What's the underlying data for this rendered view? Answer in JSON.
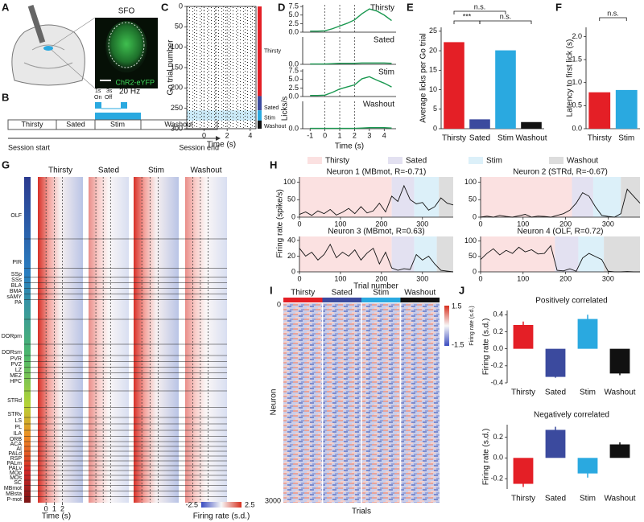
{
  "panels": {
    "A": {
      "label": "A",
      "region": "SFO",
      "reporter": "ChR2-eYFP"
    },
    "B": {
      "label": "B",
      "pulse": [
        "1s",
        "3s"
      ],
      "pulse_state": [
        "On",
        "Off"
      ],
      "frequency": "20 Hz",
      "phases": [
        "Thirsty",
        "Sated",
        "Stim",
        "Washout"
      ],
      "start": "Session start",
      "end": "Session end"
    },
    "G": {
      "label": "G",
      "columns": [
        "Thirsty",
        "Sated",
        "Stim",
        "Washout"
      ],
      "regions": [
        "OLF",
        "PIR",
        "SSp",
        "SSs",
        "BLA",
        "BMA",
        "sAMY",
        "PA",
        "DORpm",
        "DORsm",
        "PVR",
        "PVZ",
        "LZ",
        "MEZ",
        "HPC",
        "STRd",
        "STRv",
        "LS",
        "PL",
        "ILA",
        "ORB",
        "ACA",
        "AI",
        "PALd",
        "RSP",
        "PALm",
        "PALv",
        "MOp",
        "MOs",
        "SC",
        "MBmot",
        "MBsta",
        "P-mot"
      ],
      "xticks": [
        0,
        1,
        2
      ],
      "xlabel": "Time (s)",
      "colorbar_ticks": [
        -2.5,
        2.5
      ],
      "colorbar_label": "Firing rate (s.d.)"
    },
    "H": {
      "label": "H",
      "legend": [
        {
          "name": "Thirsty",
          "color": "#fbe1e1"
        },
        {
          "name": "Sated",
          "color": "#e3e1f1"
        },
        {
          "name": "Stim",
          "color": "#dcf0f9"
        },
        {
          "name": "Washout",
          "color": "#dddddd"
        }
      ],
      "ylabel": "Firing rate (spike/s)",
      "xlabel": "Trial number"
    },
    "I": {
      "label": "I",
      "columns": [
        {
          "name": "Thirsty",
          "color": "#e41f26"
        },
        {
          "name": "Sated",
          "color": "#3b4a9e"
        },
        {
          "name": "Stim",
          "color": "#2aa9e0"
        },
        {
          "name": "Washout",
          "color": "#111111"
        }
      ],
      "ylabel": "Neuron",
      "yticks": [
        0,
        3000
      ],
      "xlabel": "Trials",
      "colorbar_ticks": [
        1.5,
        -1.5
      ],
      "colorbar_label": "Firing rate (s.d.)"
    },
    "J": {
      "label": "J"
    }
  },
  "chart_data": [
    {
      "type": "raster",
      "label": "C",
      "ylabel": "Go trial number",
      "xlabel": "Time (s)",
      "xlim": [
        -1.5,
        4.5
      ],
      "xticks": [
        0,
        2,
        4
      ],
      "ylim": [
        0,
        300
      ],
      "yticks": [
        0,
        50,
        100,
        150,
        200,
        250,
        300
      ],
      "markers": [
        0,
        1,
        2
      ],
      "series": [
        {
          "name": "Thirsty",
          "color": "#e41f26",
          "range": [
            0,
            220
          ]
        },
        {
          "name": "Sated",
          "color": "#3b4a9e",
          "range": [
            220,
            255
          ]
        },
        {
          "name": "Stim",
          "color": "#2aa9e0",
          "range": [
            255,
            280
          ]
        },
        {
          "name": "Washout",
          "color": "#111111",
          "range": [
            280,
            300
          ]
        }
      ]
    },
    {
      "type": "multiline",
      "label": "D",
      "ylabel": "Licks/s",
      "xlabel": "Time (s)",
      "color": "#1a9850",
      "xlim": [
        -1.5,
        4.8
      ],
      "xticks": [
        -1,
        0,
        1,
        2,
        3,
        4
      ],
      "markers": [
        0,
        1,
        2
      ],
      "x": [
        -1,
        -0.5,
        0,
        0.5,
        1,
        1.5,
        2,
        2.5,
        3,
        3.5,
        4,
        4.5
      ],
      "subplots": [
        {
          "title": "Thirsty",
          "ylim": [
            0,
            8
          ],
          "yticks": [
            {
              "value": 0,
              "label": "0.0"
            },
            2.5,
            {
              "value": 5,
              "label": "5.0"
            },
            7.5
          ],
          "values": [
            0.3,
            0.3,
            0.4,
            1.0,
            1.8,
            2.6,
            3.6,
            5.4,
            6.8,
            6.2,
            5.0,
            3.4
          ]
        },
        {
          "title": "Sated",
          "ylim": [
            0,
            8
          ],
          "yticks": [
            {
              "value": 0,
              "label": "0.0"
            }
          ],
          "values": [
            0.1,
            0.1,
            0.1,
            0.2,
            0.3,
            0.3,
            0.3,
            0.4,
            0.4,
            0.4,
            0.4,
            0.3
          ]
        },
        {
          "title": "Stim",
          "ylim": [
            0,
            8
          ],
          "yticks": [
            {
              "value": 0,
              "label": "0.0"
            },
            2.5,
            {
              "value": 5,
              "label": "5.0"
            },
            7.5
          ],
          "values": [
            0.3,
            0.3,
            0.4,
            1.2,
            2.2,
            2.8,
            3.4,
            5.2,
            5.8,
            4.8,
            3.9,
            2.8
          ]
        },
        {
          "title": "Washout",
          "ylim": [
            0,
            8
          ],
          "yticks": [
            {
              "value": 0,
              "label": "0.0"
            }
          ],
          "values": [
            0.1,
            0.1,
            0.1,
            0.1,
            0.1,
            0.1,
            0.1,
            0.2,
            0.3,
            0.3,
            0.3,
            0.2
          ]
        }
      ]
    },
    {
      "type": "bar",
      "label": "E",
      "ylabel": "Average licks per Go trial",
      "categories": [
        "Thirsty",
        "Sated",
        "Stim",
        "Washout"
      ],
      "values": [
        22.2,
        2.4,
        20.1,
        1.7
      ],
      "colors": [
        "#e41f26",
        "#3b4a9e",
        "#2aa9e0",
        "#111111"
      ],
      "ylim": [
        0,
        26
      ],
      "yticks": [
        0,
        5,
        10,
        15,
        20,
        25
      ],
      "annotations": [
        "***",
        "n.s.",
        "n.s."
      ]
    },
    {
      "type": "bar",
      "label": "F",
      "ylabel": "Latency to first lick (s)",
      "categories": [
        "Thirsty",
        "Stim"
      ],
      "values": [
        0.79,
        0.84
      ],
      "colors": [
        "#e41f26",
        "#2aa9e0"
      ],
      "ylim": [
        0,
        2.2
      ],
      "yticks": [
        {
          "value": 0,
          "label": "0.0"
        },
        0.5,
        {
          "value": 1,
          "label": "1.0"
        },
        1.5,
        {
          "value": 2,
          "label": "2.0"
        }
      ],
      "annotations": [
        "n.s."
      ]
    },
    {
      "type": "line",
      "title": "Neuron 1 (MBmot, R=-0.71)",
      "xlim": [
        0,
        375
      ],
      "xticks": [
        0,
        100,
        200,
        300
      ],
      "ylim": [
        0,
        115
      ],
      "yticks": [
        0,
        50,
        100
      ],
      "phases": [
        [
          0,
          225
        ],
        [
          225,
          280
        ],
        [
          280,
          340
        ],
        [
          340,
          375
        ]
      ],
      "x": [
        0,
        15,
        30,
        45,
        60,
        75,
        90,
        105,
        120,
        135,
        150,
        165,
        180,
        195,
        210,
        225,
        240,
        255,
        270,
        285,
        300,
        315,
        330,
        345,
        360,
        375
      ],
      "values": [
        8,
        15,
        5,
        18,
        10,
        22,
        6,
        14,
        25,
        10,
        30,
        12,
        18,
        40,
        15,
        60,
        45,
        90,
        50,
        38,
        42,
        20,
        30,
        55,
        40,
        35
      ]
    },
    {
      "type": "line",
      "title": "Neuron 2 (STRd, R=-0.67)",
      "xlim": [
        0,
        375
      ],
      "xticks": [
        0,
        100,
        200,
        300
      ],
      "ylim": [
        0,
        115
      ],
      "yticks": [
        0,
        50,
        100
      ],
      "phases": [
        [
          0,
          215
        ],
        [
          215,
          265
        ],
        [
          265,
          330
        ],
        [
          330,
          375
        ]
      ],
      "x": [
        0,
        15,
        30,
        45,
        60,
        75,
        90,
        105,
        120,
        135,
        150,
        165,
        180,
        195,
        210,
        225,
        240,
        255,
        270,
        285,
        300,
        315,
        330,
        345,
        360,
        375
      ],
      "values": [
        0,
        3,
        0,
        5,
        2,
        0,
        4,
        8,
        0,
        3,
        2,
        0,
        5,
        10,
        20,
        40,
        70,
        60,
        30,
        5,
        2,
        0,
        10,
        80,
        60,
        40
      ]
    },
    {
      "type": "line",
      "title": "Neuron 3 (MBmot, R=0.63)",
      "xlim": [
        0,
        375
      ],
      "xticks": [
        0,
        100,
        200,
        300
      ],
      "ylim": [
        0,
        45
      ],
      "yticks": [
        0,
        20,
        40
      ],
      "phases": [
        [
          0,
          225
        ],
        [
          225,
          280
        ],
        [
          280,
          335
        ],
        [
          335,
          375
        ]
      ],
      "x": [
        0,
        15,
        30,
        45,
        60,
        75,
        90,
        105,
        120,
        135,
        150,
        165,
        180,
        195,
        210,
        225,
        240,
        255,
        270,
        285,
        300,
        315,
        330,
        345,
        360,
        375
      ],
      "values": [
        30,
        20,
        25,
        15,
        22,
        35,
        18,
        25,
        20,
        28,
        15,
        24,
        30,
        10,
        25,
        5,
        2,
        4,
        3,
        22,
        15,
        20,
        10,
        2,
        1,
        0
      ]
    },
    {
      "type": "line",
      "title": "Neuron 4 (OLF, R=0.72)",
      "xlim": [
        0,
        375
      ],
      "xticks": [
        0,
        100,
        200,
        300
      ],
      "ylim": [
        0,
        115
      ],
      "yticks": [
        0,
        50,
        100
      ],
      "phases": [
        [
          0,
          175
        ],
        [
          175,
          230
        ],
        [
          230,
          290
        ],
        [
          290,
          375
        ]
      ],
      "x": [
        0,
        15,
        30,
        45,
        60,
        75,
        90,
        105,
        120,
        135,
        150,
        165,
        180,
        195,
        210,
        225,
        240,
        255,
        270,
        285,
        300,
        315,
        330,
        345,
        360,
        375
      ],
      "values": [
        40,
        60,
        75,
        55,
        70,
        60,
        80,
        65,
        72,
        58,
        60,
        85,
        5,
        3,
        10,
        2,
        45,
        60,
        50,
        40,
        2,
        0,
        0,
        1,
        0,
        0
      ]
    },
    {
      "type": "bar",
      "title": "Positively correlated",
      "ylabel": "Firing rate (s.d.)",
      "categories": [
        "Thirsty",
        "Sated",
        "Stim",
        "Washout"
      ],
      "values": [
        0.28,
        -0.33,
        0.35,
        -0.29
      ],
      "errors": [
        0.04,
        0.01,
        0.05,
        0.02
      ],
      "colors": [
        "#e41f26",
        "#3b4a9e",
        "#2aa9e0",
        "#111111"
      ],
      "ylim": [
        -0.4,
        0.45
      ],
      "yticks": [
        0.4,
        0.2,
        {
          "value": 0,
          "label": "0.0"
        },
        -0.2,
        -0.4
      ]
    },
    {
      "type": "bar",
      "title": "Negatively correlated",
      "ylabel": "Firing rate (s.d.)",
      "categories": [
        "Thirsty",
        "Sated",
        "Stim",
        "Washout"
      ],
      "values": [
        -0.25,
        0.27,
        -0.15,
        0.13
      ],
      "errors": [
        0.03,
        0.03,
        0.04,
        0.02
      ],
      "colors": [
        "#e41f26",
        "#3b4a9e",
        "#2aa9e0",
        "#111111"
      ],
      "ylim": [
        -0.3,
        0.32
      ],
      "yticks": [
        0.2,
        {
          "value": 0,
          "label": "0.0"
        },
        -0.2
      ]
    }
  ]
}
